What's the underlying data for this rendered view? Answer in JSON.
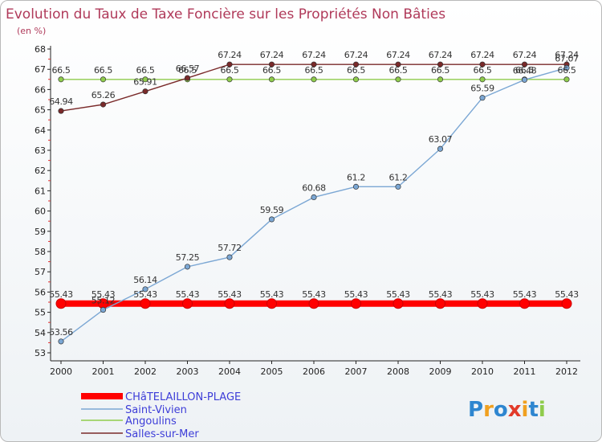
{
  "chart_data": {
    "type": "line",
    "title": "Evolution du Taux de Taxe Foncière sur les Propriétés Non Bâties",
    "unit_label": "(en %)",
    "xlabel": "",
    "ylabel": "",
    "categories": [
      "2000",
      "2001",
      "2002",
      "2003",
      "2004",
      "2005",
      "2006",
      "2007",
      "2008",
      "2009",
      "2010",
      "2011",
      "2012"
    ],
    "ylim": [
      53,
      68
    ],
    "yticks": [
      "53",
      "54",
      "55",
      "56",
      "57",
      "58",
      "59",
      "60",
      "61",
      "62",
      "63",
      "64",
      "65",
      "66",
      "67",
      "68"
    ],
    "grid": false,
    "legend_position": "bottom-left",
    "series": [
      {
        "name": "CHâTELAILLON-PLAGE",
        "color": "#ff0000",
        "values": [
          55.43,
          55.43,
          55.43,
          55.43,
          55.43,
          55.43,
          55.43,
          55.43,
          55.43,
          55.43,
          55.43,
          55.43,
          55.43
        ],
        "labels": [
          "55.43",
          "55.43",
          "55.43",
          "55.43",
          "55.43",
          "55.43",
          "55.43",
          "55.43",
          "55.43",
          "55.43",
          "55.43",
          "55.43",
          "55.43"
        ]
      },
      {
        "name": "Saint-Vivien",
        "color": "#7ba7d4",
        "values": [
          53.56,
          55.12,
          56.14,
          57.25,
          57.72,
          59.59,
          60.68,
          61.2,
          61.2,
          63.07,
          65.59,
          66.48,
          67.07
        ],
        "labels": [
          "53.56",
          "55.12",
          "56.14",
          "57.25",
          "57.72",
          "59.59",
          "60.68",
          "61.2",
          "61.2",
          "63.07",
          "65.59",
          "66.48",
          "67.07"
        ]
      },
      {
        "name": "Angoulins",
        "color": "#8fcc4c",
        "values": [
          66.5,
          66.5,
          66.5,
          66.5,
          66.5,
          66.5,
          66.5,
          66.5,
          66.5,
          66.5,
          66.5,
          66.5,
          66.5
        ],
        "labels": [
          "66.5",
          "66.5",
          "66.5",
          "66.5",
          "66.5",
          "66.5",
          "66.5",
          "66.5",
          "66.5",
          "66.5",
          "66.5",
          "66.5",
          "66.5"
        ]
      },
      {
        "name": "Salles-sur-Mer",
        "color": "#7a2a2a",
        "values": [
          64.94,
          65.26,
          65.91,
          66.57,
          67.24,
          67.24,
          67.24,
          67.24,
          67.24,
          67.24,
          67.24,
          67.24,
          67.24
        ],
        "labels": [
          "64.94",
          "65.26",
          "65.91",
          "66.57",
          "67.24",
          "67.24",
          "67.24",
          "67.24",
          "67.24",
          "67.24",
          "67.24",
          "67.24",
          "67.24"
        ]
      }
    ]
  },
  "logo": {
    "text": "Proxiti",
    "colors": [
      "#2e86d0",
      "#f0a020",
      "#2e86d0",
      "#e23a2a",
      "#f0a020",
      "#2e86d0",
      "#8fcc4c"
    ]
  }
}
